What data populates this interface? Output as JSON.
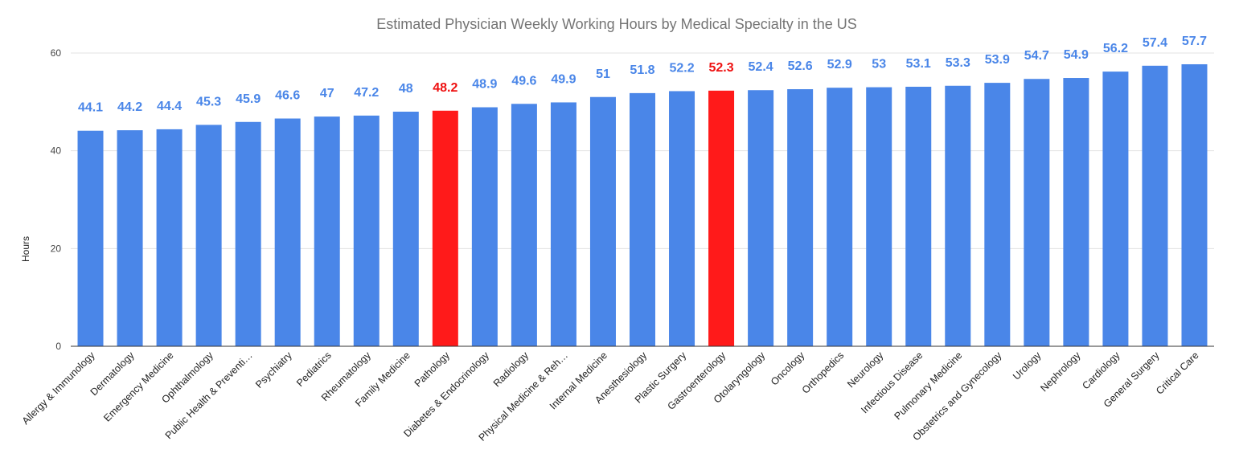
{
  "chart_data": {
    "type": "bar",
    "title": "Estimated Physician Weekly Working Hours by Medical Specialty in the US",
    "xlabel": "",
    "ylabel": "Hours",
    "ylim": [
      0,
      60
    ],
    "yticks": [
      "0",
      "20",
      "40",
      "60"
    ],
    "grid": true,
    "legend": "none",
    "colors": {
      "default": "#4a86e8",
      "highlight": "#ff1a1a",
      "default_label": "#4a86e8",
      "highlight_label": "#ee1111"
    },
    "categories": [
      "Allergy & Immunology",
      "Dermatology",
      "Emergency Medicine",
      "Ophthalmology",
      "Public Health & Preventi…",
      "Psychiatry",
      "Pediatrics",
      "Rheumatology",
      "Family Medicine",
      "Pathology",
      "Diabetes & Endocrinology",
      "Radiology",
      "Physical Medicine & Reh…",
      "Internal Medicine",
      "Anesthesiology",
      "Plastic Surgery",
      "Gastroenterology",
      "Otolaryngology",
      "Oncology",
      "Orthopedics",
      "Neurology",
      "Infectious Disease",
      "Pulmonary Medicine",
      "Obstetrics and Gynecology",
      "Urology",
      "Nephrology",
      "Cardiology",
      "General Surgery",
      "Critical Care"
    ],
    "values": [
      44.1,
      44.2,
      44.4,
      45.3,
      45.9,
      46.6,
      47,
      47.2,
      48,
      48.2,
      48.9,
      49.6,
      49.9,
      51,
      51.8,
      52.2,
      52.3,
      52.4,
      52.6,
      52.9,
      53,
      53.1,
      53.3,
      53.9,
      54.7,
      54.9,
      56.2,
      57.4,
      57.7
    ],
    "data_labels": [
      "44.1",
      "44.2",
      "44.4",
      "45.3",
      "45.9",
      "46.6",
      "47",
      "47.2",
      "48",
      "48.2",
      "48.9",
      "49.6",
      "49.9",
      "51",
      "51.8",
      "52.2",
      "52.3",
      "52.4",
      "52.6",
      "52.9",
      "53",
      "53.1",
      "53.3",
      "53.9",
      "54.7",
      "54.9",
      "56.2",
      "57.4",
      "57.7"
    ],
    "highlighted": [
      "Pathology",
      "Gastroenterology"
    ]
  }
}
